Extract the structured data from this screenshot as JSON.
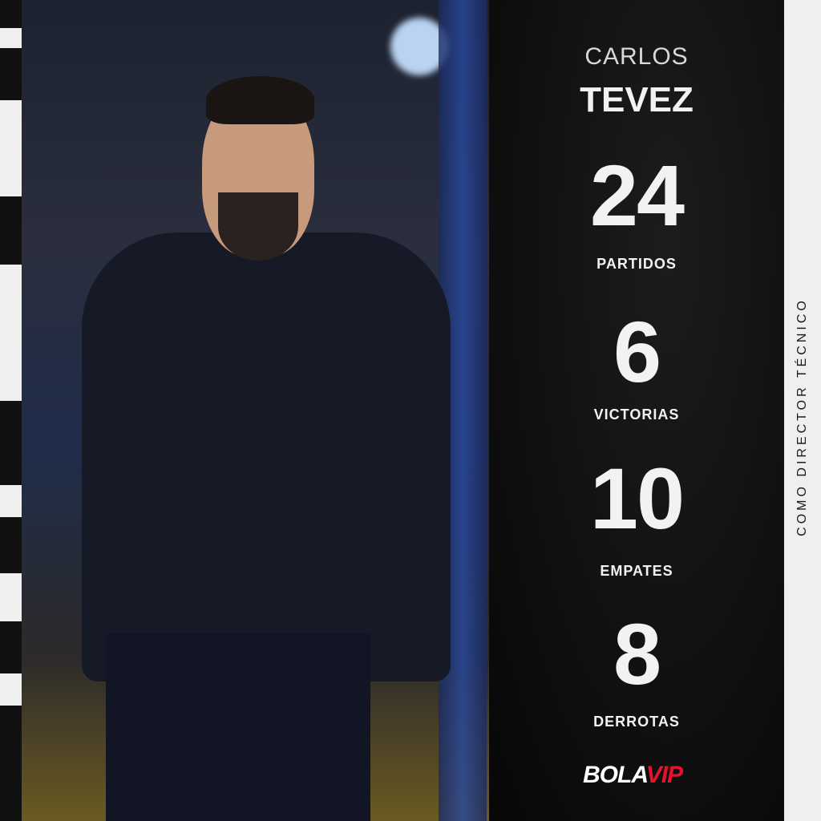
{
  "player": {
    "first_name": "CARLOS",
    "last_name": "TEVEZ"
  },
  "stats": [
    {
      "value": "24",
      "label": "PARTIDOS"
    },
    {
      "value": "6",
      "label": "VICTORIAS"
    },
    {
      "value": "10",
      "label": "EMPATES"
    },
    {
      "value": "8",
      "label": "DERROTAS"
    }
  ],
  "side_caption": "COMO DIRECTOR TÉCNICO",
  "brand": {
    "part1": "BOLA",
    "part2": "VIP",
    "accent": "#e8112d"
  }
}
